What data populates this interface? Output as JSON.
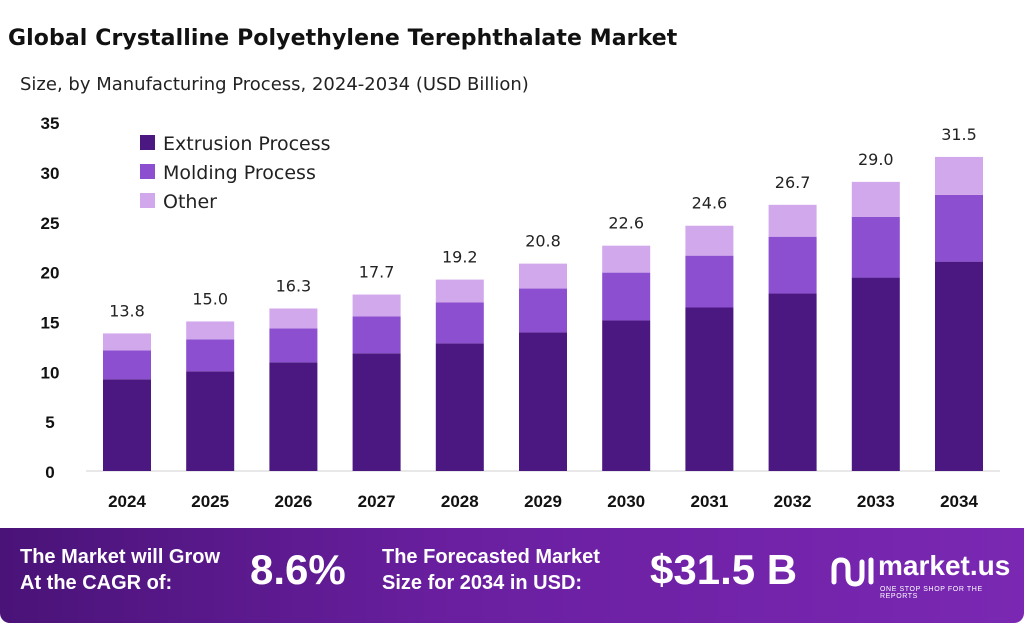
{
  "header": {
    "title": "Global Crystalline Polyethylene Terephthalate Market",
    "subtitle": "Size, by Manufacturing Process, 2024-2034 (USD Billion)"
  },
  "chart_data": {
    "type": "bar",
    "stacked": true,
    "categories": [
      "2024",
      "2025",
      "2026",
      "2027",
      "2028",
      "2029",
      "2030",
      "2031",
      "2032",
      "2033",
      "2034"
    ],
    "series": [
      {
        "name": "Extrusion Process",
        "color": "#4b1780",
        "values": [
          9.2,
          10.0,
          10.9,
          11.8,
          12.8,
          13.9,
          15.1,
          16.4,
          17.8,
          19.4,
          21.0
        ]
      },
      {
        "name": "Molding Process",
        "color": "#8b4fcf",
        "values": [
          2.9,
          3.2,
          3.4,
          3.7,
          4.1,
          4.4,
          4.8,
          5.2,
          5.7,
          6.1,
          6.7
        ]
      },
      {
        "name": "Other",
        "color": "#d2a8ec",
        "values": [
          1.7,
          1.8,
          2.0,
          2.2,
          2.3,
          2.5,
          2.7,
          3.0,
          3.2,
          3.5,
          3.8
        ]
      }
    ],
    "totals": [
      "13.8",
      "15.0",
      "16.3",
      "17.7",
      "19.2",
      "20.8",
      "22.6",
      "24.6",
      "26.7",
      "29.0",
      "31.5"
    ],
    "ylim": [
      0,
      35
    ],
    "yticks": [
      "0",
      "5",
      "10",
      "15",
      "20",
      "25",
      "30",
      "35"
    ],
    "grid": false,
    "legend_position": "top-left"
  },
  "footer": {
    "cagr_label_line1": "The Market will Grow",
    "cagr_label_line2": "At the CAGR of:",
    "cagr_value": "8.6%",
    "forecast_label_line1": "The Forecasted Market",
    "forecast_label_line2": "Size for 2034 in USD:",
    "forecast_value": "$31.5 B",
    "brand_name": "market.us",
    "brand_tagline": "ONE STOP SHOP FOR THE REPORTS",
    "logo_icon": "market-us-logo-icon"
  }
}
